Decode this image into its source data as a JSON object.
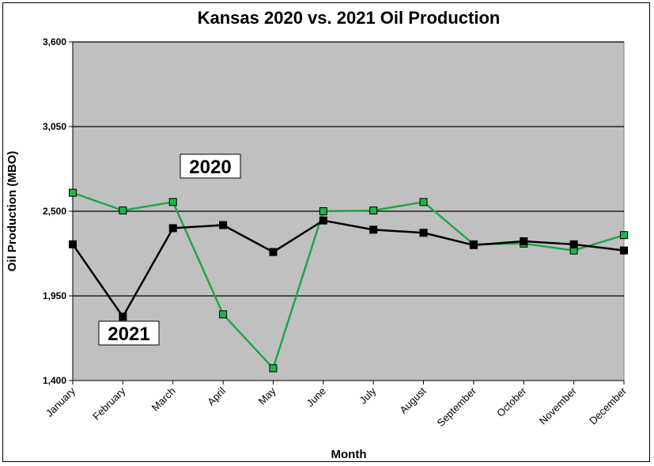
{
  "chart_data": {
    "type": "line",
    "title": "Kansas 2020 vs. 2021 Oil Production",
    "xlabel": "Month",
    "ylabel": "Oil Production (MBO)",
    "ylim": [
      1400,
      3600
    ],
    "yticks": [
      "1,400",
      "1,950",
      "2,500",
      "3,050",
      "3,600"
    ],
    "ytick_values": [
      1400,
      1950,
      2500,
      3050,
      3600
    ],
    "grid": "horizontal",
    "plot_background": "#c0c0c0",
    "categories": [
      "January",
      "February",
      "March",
      "April",
      "May",
      "June",
      "July",
      "August",
      "September",
      "October",
      "November",
      "December"
    ],
    "series": [
      {
        "name": "2020",
        "color": "#1fa64a",
        "marker_color": "#22b14c",
        "values": [
          2620,
          2505,
          2560,
          1830,
          1480,
          2500,
          2505,
          2560,
          2285,
          2290,
          2245,
          2345
        ]
      },
      {
        "name": "2021",
        "color": "#000000",
        "marker_color": "#000000",
        "values": [
          2285,
          1815,
          2390,
          2410,
          2235,
          2440,
          2380,
          2360,
          2280,
          2305,
          2285,
          2245
        ]
      }
    ],
    "callouts": [
      {
        "text": "2020",
        "series": "2020",
        "position": "above March, left of April"
      },
      {
        "text": "2021",
        "series": "2021",
        "position": "below February"
      }
    ]
  }
}
